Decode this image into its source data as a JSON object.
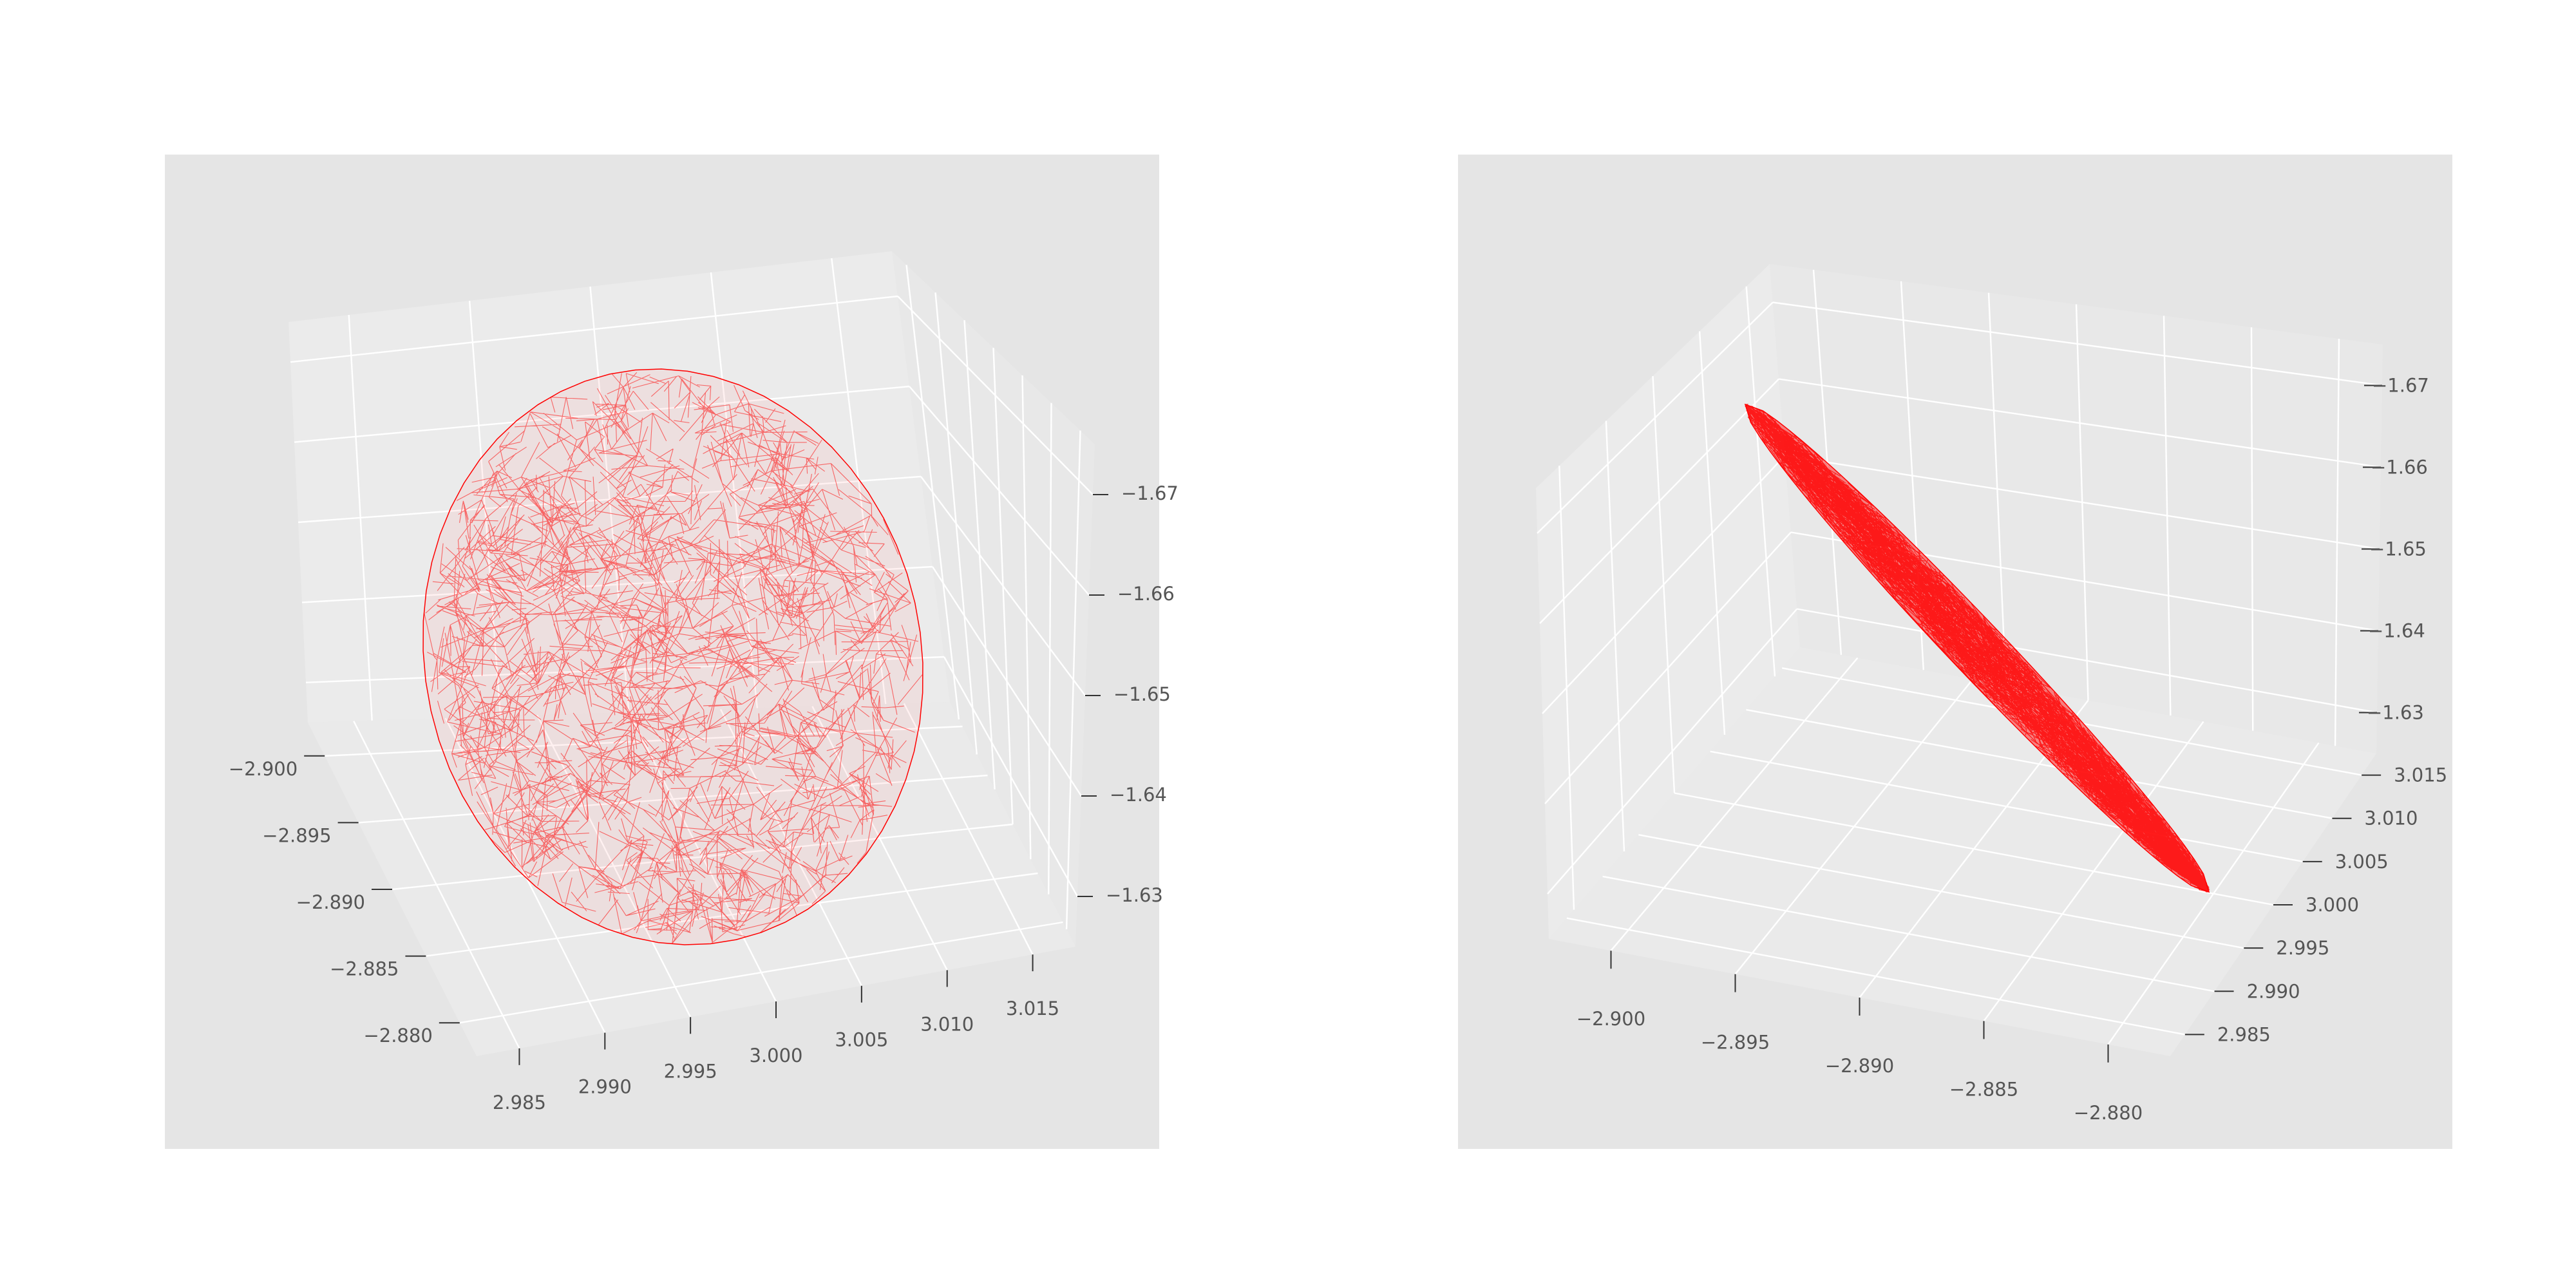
{
  "chart_data": [
    {
      "type": "3d-mesh",
      "view": "front-elevated",
      "axes": {
        "x": {
          "ticks": [
            "−2.900",
            "−2.895",
            "−2.890",
            "−2.885",
            "−2.880"
          ],
          "range": [
            -2.902,
            -2.878
          ]
        },
        "y": {
          "ticks": [
            "2.985",
            "2.990",
            "2.995",
            "3.000",
            "3.005",
            "3.010",
            "3.015"
          ],
          "range": [
            2.983,
            3.018
          ]
        },
        "z": {
          "ticks": [
            "−1.63",
            "−1.64",
            "−1.65",
            "−1.66",
            "−1.67"
          ],
          "range": [
            -1.675,
            -1.625
          ]
        }
      },
      "grid": true,
      "mesh": {
        "shape": "ellipsoidal wireframe",
        "color": "#ff0000"
      }
    },
    {
      "type": "3d-mesh",
      "view": "side-edge-on",
      "axes": {
        "x": {
          "ticks": [
            "−2.900",
            "−2.895",
            "−2.890",
            "−2.885",
            "−2.880"
          ],
          "range": [
            -2.902,
            -2.878
          ]
        },
        "y": {
          "ticks": [
            "2.985",
            "2.990",
            "2.995",
            "3.000",
            "3.005",
            "3.010",
            "3.015"
          ],
          "range": [
            2.983,
            3.018
          ]
        },
        "z": {
          "ticks": [
            "−1.63",
            "−1.64",
            "−1.65",
            "−1.66",
            "−1.67"
          ],
          "range": [
            -1.675,
            -1.625
          ]
        }
      },
      "grid": true,
      "mesh": {
        "shape": "flattened ellipsoidal wireframe seen edge-on",
        "color": "#ff0000"
      }
    }
  ]
}
